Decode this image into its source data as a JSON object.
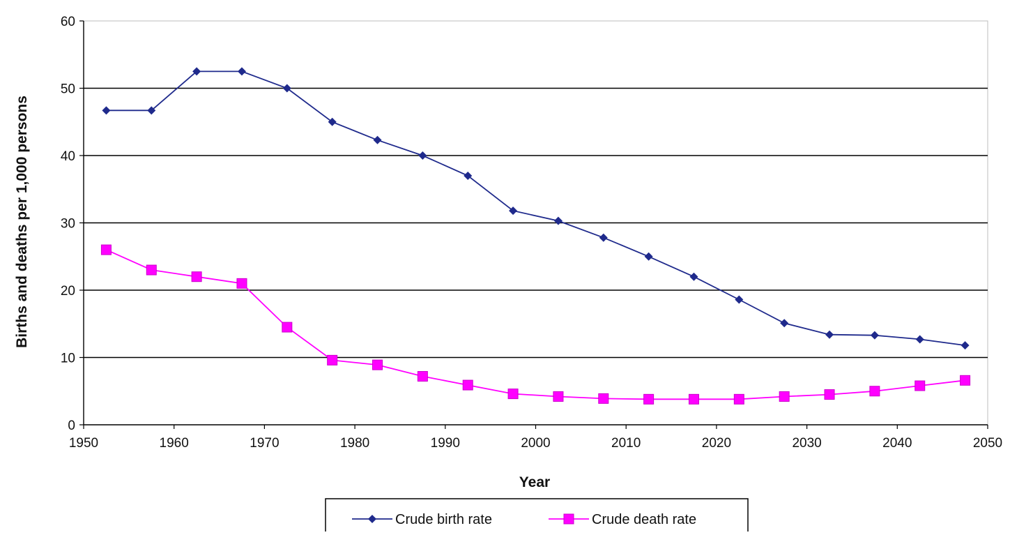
{
  "chart_data": {
    "type": "line",
    "title": "",
    "xlabel": "Year",
    "ylabel": "Births and deaths per 1,000 persons",
    "xlim": [
      1950,
      2050
    ],
    "ylim": [
      0,
      60
    ],
    "x_ticks": [
      "1950",
      "1960",
      "1970",
      "1980",
      "1990",
      "2000",
      "2010",
      "2020",
      "2030",
      "2040",
      "2050"
    ],
    "y_ticks": [
      "0",
      "10",
      "20",
      "30",
      "40",
      "50",
      "60"
    ],
    "grid": true,
    "legend_position": "bottom",
    "x": [
      1952.5,
      1957.5,
      1962.5,
      1967.5,
      1972.5,
      1977.5,
      1982.5,
      1987.5,
      1992.5,
      1997.5,
      2002.5,
      2007.5,
      2012.5,
      2017.5,
      2022.5,
      2027.5,
      2032.5,
      2037.5,
      2042.5,
      2047.5
    ],
    "series": [
      {
        "name": "Crude birth rate",
        "color": "#1f2a8c",
        "marker": "diamond",
        "values": [
          46.7,
          46.7,
          52.5,
          52.5,
          50.0,
          45.0,
          42.3,
          40.0,
          37.0,
          31.8,
          30.3,
          27.8,
          25.0,
          22.0,
          18.6,
          15.1,
          13.4,
          13.3,
          12.7,
          11.8
        ]
      },
      {
        "name": "Crude death rate",
        "color": "#ff00ff",
        "marker": "square",
        "values": [
          26.0,
          23.0,
          22.0,
          21.0,
          14.5,
          9.6,
          8.9,
          7.2,
          5.9,
          4.6,
          4.2,
          3.9,
          3.8,
          3.8,
          3.8,
          4.2,
          4.5,
          5.0,
          5.8,
          6.6
        ]
      }
    ]
  }
}
